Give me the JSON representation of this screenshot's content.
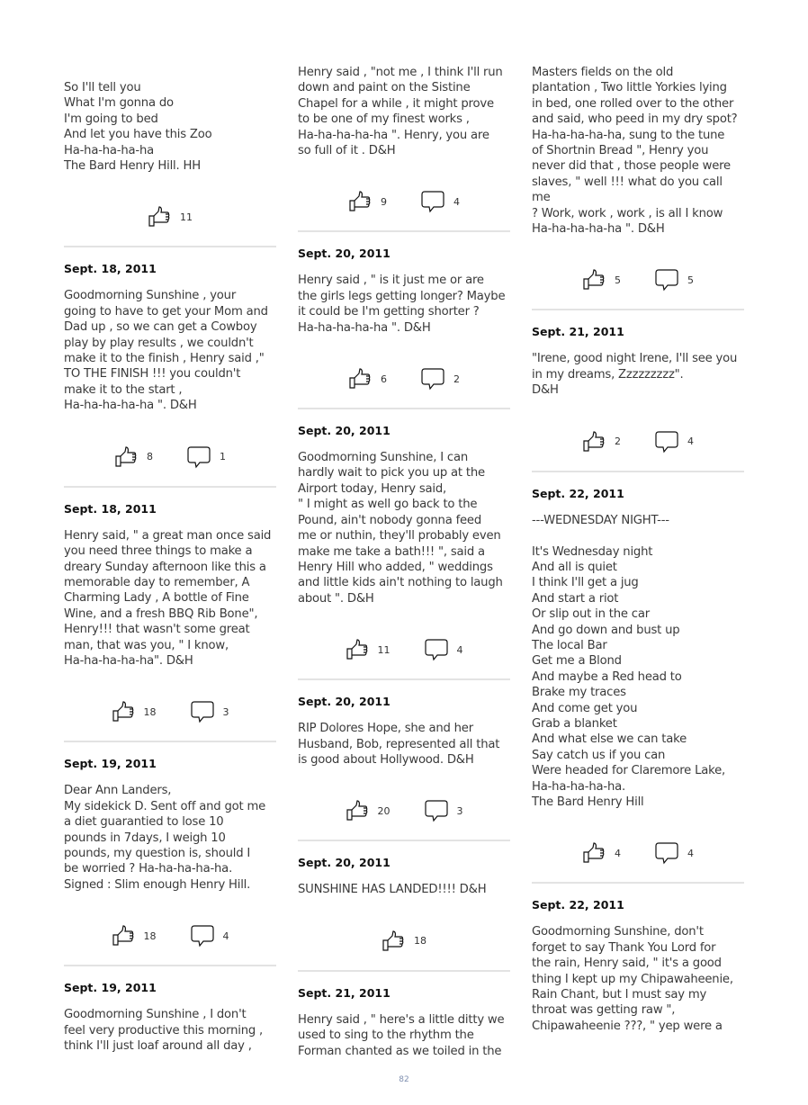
{
  "page_number": "82",
  "columns": [
    {
      "continuation": {
        "text": "So I'll tell you\nWhat I'm gonna do\nI'm going to bed\nAnd let you have this Zoo\nHa-ha-ha-ha-ha\nThe Bard Henry Hill. HH",
        "likes": "11",
        "comments": null
      },
      "posts": [
        {
          "date": "Sept. 18, 2011",
          "text": "Goodmorning Sunshine , your\ngoing to have to get your Mom and\nDad up , so we can get a Cowboy\nplay by play results , we couldn't\nmake it to the finish , Henry said ,\"\nTO THE FINISH !!! you couldn't\nmake it to the start ,\nHa-ha-ha-ha-ha \". D&H",
          "likes": "8",
          "comments": "1"
        },
        {
          "date": "Sept. 18, 2011",
          "text": "Henry said, \" a great man once said\nyou need three things to make a\ndreary Sunday afternoon like this a\nmemorable day to remember, A\nCharming Lady , A bottle of Fine\nWine, and a fresh BBQ Rib Bone\",\nHenry!!! that wasn't some great\nman, that was you, \" I know,\nHa-ha-ha-ha-ha\". D&H",
          "likes": "18",
          "comments": "3"
        },
        {
          "date": "Sept. 19, 2011",
          "text": "Dear Ann Landers,\nMy sidekick D. Sent off and got me\na diet guarantied to lose 10\npounds in 7days, I weigh 10\npounds, my question is, should I\nbe worried ? Ha-ha-ha-ha-ha.\nSigned : Slim enough Henry Hill.",
          "likes": "18",
          "comments": "4"
        },
        {
          "date": "Sept. 19, 2011",
          "text": "Goodmorning Sunshine , I don't\nfeel very productive this morning ,\nthink I'll just loaf around all day ,",
          "likes": null,
          "comments": null
        }
      ]
    },
    {
      "continuation": {
        "text": "Henry said , \"not me , I think I'll run\ndown and paint on the Sistine\nChapel for a while , it might prove\nto be one of my finest works ,\nHa-ha-ha-ha-ha \". Henry, you are\nso full of it . D&H",
        "likes": "9",
        "comments": "4"
      },
      "posts": [
        {
          "date": "Sept. 20, 2011",
          "text": "Henry said , \" is it just me or are\nthe girls legs getting longer? Maybe\nit could be I'm getting shorter ?\nHa-ha-ha-ha-ha \". D&H",
          "likes": "6",
          "comments": "2"
        },
        {
          "date": "Sept. 20, 2011",
          "text": "Goodmorning Sunshine, I can\nhardly wait to pick you up at the\nAirport today, Henry said,\n\" I might as well go back to the\nPound, ain't nobody gonna feed\nme or nuthin, they'll probably even\nmake me take a bath!!! \", said a\nHenry Hill who added, \" weddings\nand little kids ain't nothing to laugh\nabout \". D&H",
          "likes": "11",
          "comments": "4"
        },
        {
          "date": "Sept. 20, 2011",
          "text": "RIP Dolores Hope, she and her\nHusband, Bob, represented all that\nis good about Hollywood. D&H",
          "likes": "20",
          "comments": "3"
        },
        {
          "date": "Sept. 20, 2011",
          "text": "SUNSHINE HAS LANDED!!!! D&H",
          "likes": "18",
          "comments": null
        },
        {
          "date": "Sept. 21, 2011",
          "text": "Henry said , \" here's a little ditty we\nused to sing to the rhythm the\nForman chanted as we toiled in the",
          "likes": null,
          "comments": null
        }
      ]
    },
    {
      "continuation": {
        "text": "Masters fields on the old\nplantation , Two little Yorkies lying\nin bed, one rolled over to the other\nand said, who peed in my dry spot?\nHa-ha-ha-ha-ha, sung to the tune\nof Shortnin Bread \", Henry you\nnever did that , those people were\nslaves, \" well !!! what do you call me\n? Work, work , work , is all I know\nHa-ha-ha-ha-ha \". D&H",
        "likes": "5",
        "comments": "5"
      },
      "posts": [
        {
          "date": "Sept. 21, 2011",
          "text": "\"Irene, good night Irene, I'll see you\nin my dreams, Zzzzzzzzz\".\nD&H",
          "likes": "2",
          "comments": "4"
        },
        {
          "date": "Sept. 22, 2011",
          "text": "---WEDNESDAY NIGHT---\n\nIt's Wednesday night\nAnd all is quiet\nI think I'll get a jug\nAnd start a riot\nOr slip out in the car\nAnd go down and bust up\nThe local Bar\nGet me a Blond\nAnd maybe a Red head to\nBrake my traces\nAnd come get you\nGrab a blanket\nAnd what else we can take\nSay catch us if you can\nWere headed for Claremore Lake,\nHa-ha-ha-ha-ha.\nThe Bard Henry Hill",
          "likes": "4",
          "comments": "4"
        },
        {
          "date": "Sept. 22, 2011",
          "text": "Goodmorning Sunshine, don't\nforget to say Thank You Lord for\nthe rain, Henry said, \" it's a good\nthing I kept up my Chipawaheenie,\nRain Chant, but I must say my\nthroat was getting raw \",\nChipawaheenie ???, \" yep were a",
          "likes": null,
          "comments": null
        }
      ]
    }
  ]
}
